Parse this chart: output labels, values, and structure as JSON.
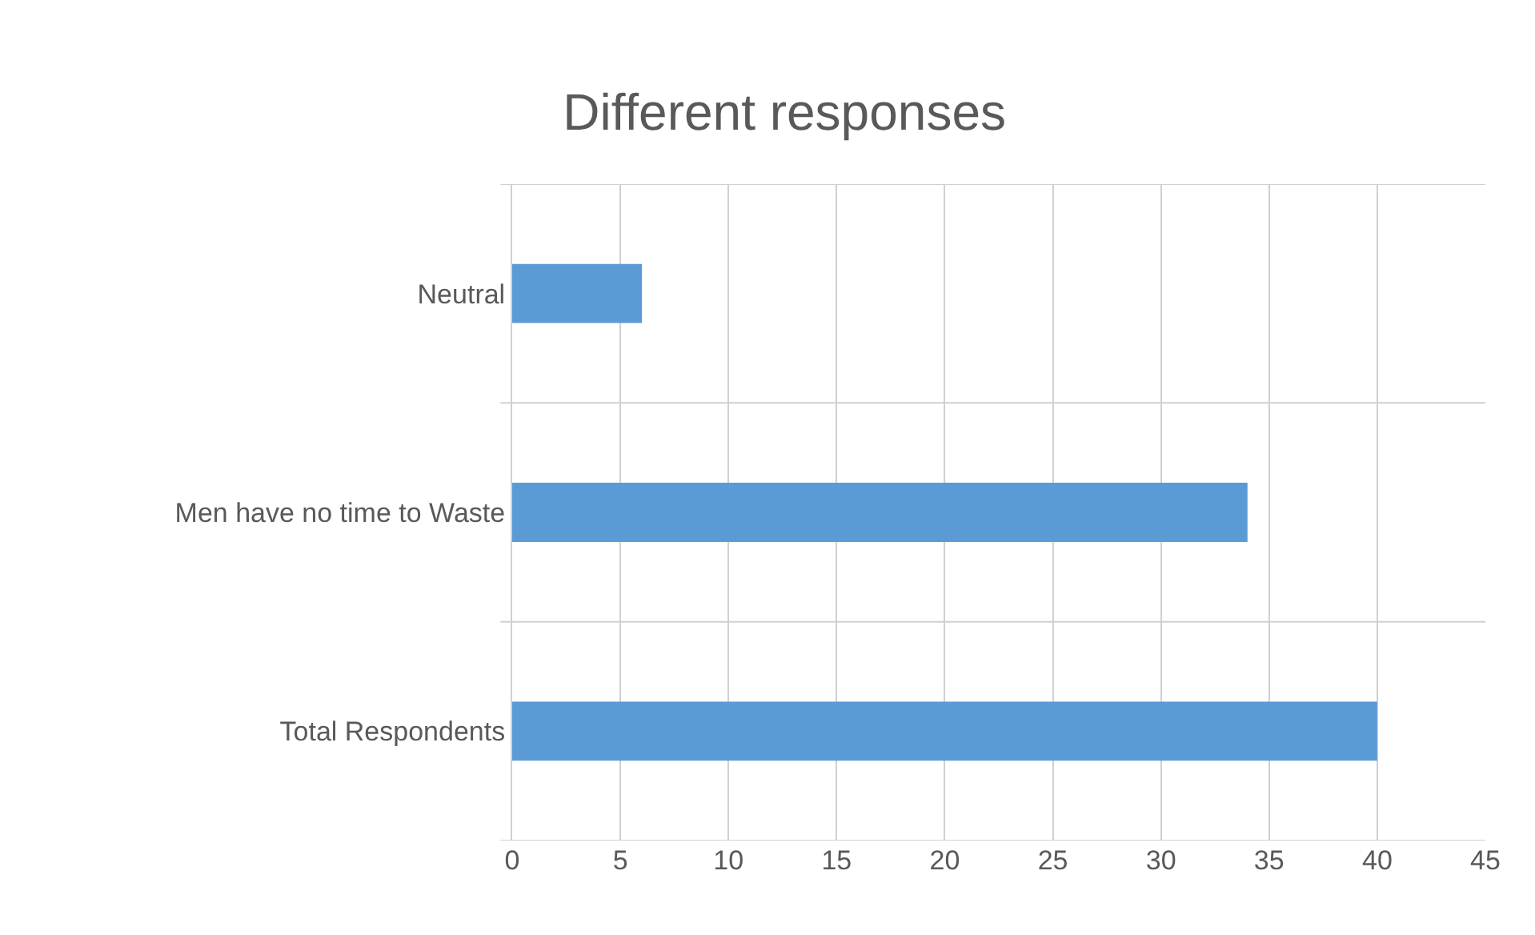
{
  "chart_data": {
    "type": "bar",
    "title": "Different responses",
    "orientation": "horizontal",
    "categories": [
      "Neutral",
      "Men have no time to Waste",
      "Total Respondents"
    ],
    "values": [
      6,
      34,
      40
    ],
    "color": "#5b9bd5",
    "xlim": [
      0,
      45
    ],
    "xticks": [
      0,
      5,
      10,
      15,
      20,
      25,
      30,
      35,
      40,
      45
    ],
    "grid": true
  }
}
